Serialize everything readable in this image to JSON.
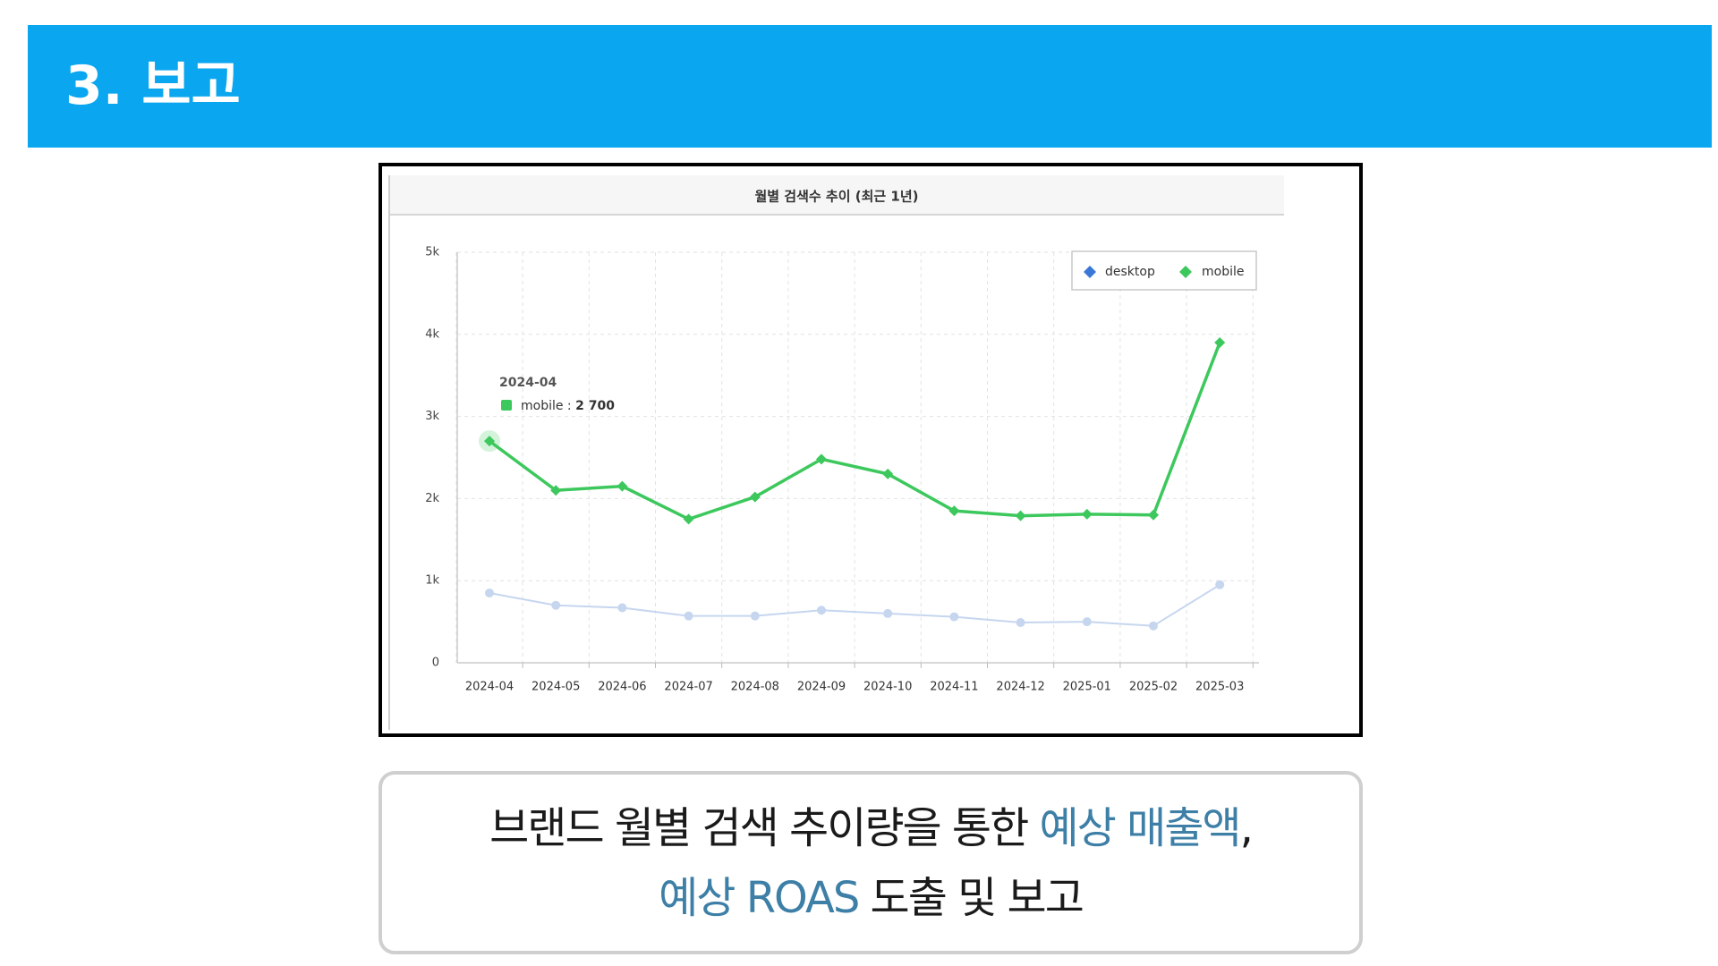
{
  "header": {
    "title": "3. 보고"
  },
  "chart_data": {
    "type": "line",
    "title": "월별 검색수 추이 (최근 1년)",
    "categories": [
      "2024-04",
      "2024-05",
      "2024-06",
      "2024-07",
      "2024-08",
      "2024-09",
      "2024-10",
      "2024-11",
      "2024-12",
      "2025-01",
      "2025-02",
      "2025-03"
    ],
    "yticks": [
      "0",
      "1k",
      "2k",
      "3k",
      "4k",
      "5k"
    ],
    "ylim": [
      0,
      5000
    ],
    "grid": true,
    "legend_position": "top-right",
    "series": [
      {
        "name": "desktop",
        "color": "#c6d6ef",
        "legend_color": "#3a78d8",
        "values": [
          850,
          700,
          670,
          570,
          570,
          640,
          600,
          560,
          490,
          500,
          450,
          950
        ]
      },
      {
        "name": "mobile",
        "color": "#3cc85c",
        "legend_color": "#3cc85c",
        "values": [
          2700,
          2100,
          2150,
          1750,
          2020,
          2480,
          2300,
          1850,
          1790,
          1810,
          1800,
          3900
        ]
      }
    ],
    "tooltip": {
      "date": "2024-04",
      "series": "mobile",
      "value": "2 700"
    }
  },
  "caption": {
    "line1_a": "브랜드 월별 검색 추이량을 통한 ",
    "line1_hl": "예상 매출액",
    "line1_b": ",",
    "line2_hl": "예상 ROAS",
    "line2_b": " 도출 및 보고"
  }
}
